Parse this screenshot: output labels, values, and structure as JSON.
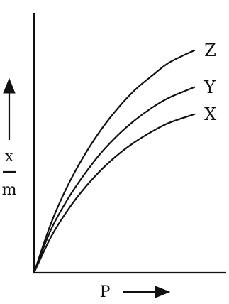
{
  "chart_data": {
    "type": "line",
    "title": "",
    "xlabel": "P",
    "ylabel": {
      "numerator": "x",
      "denominator": "m"
    },
    "grid": false,
    "xlim": [
      0,
      10
    ],
    "ylim": [
      0,
      10
    ],
    "series": [
      {
        "name": "Z",
        "x": [
          0,
          1,
          2,
          3,
          4,
          5,
          6,
          7,
          8,
          9.5
        ],
        "y": [
          0,
          2.0,
          3.55,
          4.8,
          5.85,
          6.72,
          7.45,
          8.02,
          8.55,
          9.05
        ]
      },
      {
        "name": "Y",
        "x": [
          0,
          1,
          2,
          3,
          4,
          5,
          6,
          7,
          8,
          9.5
        ],
        "y": [
          0,
          1.75,
          3.0,
          4.02,
          4.9,
          5.62,
          6.22,
          6.72,
          7.12,
          7.55
        ]
      },
      {
        "name": "X",
        "x": [
          0,
          1,
          2,
          3,
          4,
          5,
          6,
          7,
          8,
          9.5
        ],
        "y": [
          0,
          1.45,
          2.55,
          3.45,
          4.2,
          4.82,
          5.33,
          5.75,
          6.1,
          6.45
        ]
      }
    ]
  }
}
